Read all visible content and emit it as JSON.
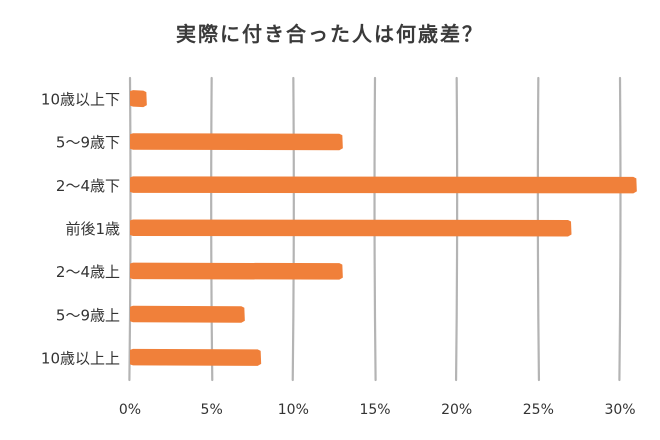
{
  "chart_data": {
    "type": "bar",
    "orientation": "horizontal",
    "title": "実際に付き合った人は何歳差？",
    "categories": [
      "10歳以上下",
      "5〜9歳下",
      "2〜4歳下",
      "前後1歳",
      "2〜4歳上",
      "5〜9歳上",
      "10歳以上上"
    ],
    "values": [
      1,
      13,
      31,
      27,
      13,
      7,
      8
    ],
    "xlim": [
      0,
      31
    ],
    "xticks": [
      0,
      5,
      10,
      15,
      20,
      25,
      30
    ],
    "tick_suffix": "%",
    "grid": true,
    "bar_color": "#F0803A",
    "grid_color": "#b4b4b4"
  }
}
